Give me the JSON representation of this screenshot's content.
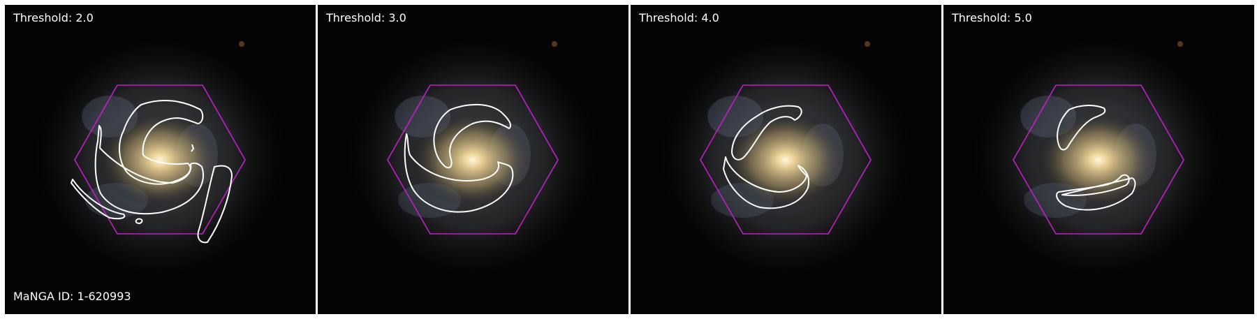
{
  "object_id": "MaNGA ID: 1-620993",
  "panels": [
    {
      "threshold_label": "Threshold: 2.0"
    },
    {
      "threshold_label": "Threshold: 3.0"
    },
    {
      "threshold_label": "Threshold: 4.0"
    },
    {
      "threshold_label": "Threshold: 5.0"
    }
  ],
  "colors": {
    "background": "#000000",
    "hexagon": "#c020c8",
    "contour": "#ffffff",
    "text": "#ffffff"
  }
}
